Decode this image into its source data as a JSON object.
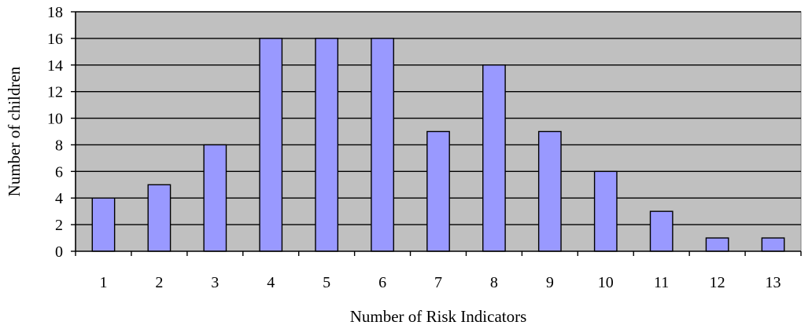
{
  "chart_data": {
    "type": "bar",
    "xlabel": "Number of Risk Indicators",
    "ylabel": "Number of children",
    "categories": [
      "1",
      "2",
      "3",
      "4",
      "5",
      "6",
      "7",
      "8",
      "9",
      "10",
      "11",
      "12",
      "13"
    ],
    "series": [
      {
        "values": [
          4,
          5,
          8,
          16,
          16,
          16,
          9,
          14,
          9,
          6,
          3,
          1,
          1
        ]
      }
    ],
    "ylim": [
      0,
      18
    ],
    "yticks": [
      0,
      2,
      4,
      6,
      8,
      10,
      12,
      14,
      16,
      18
    ],
    "grid": true,
    "legend": "none",
    "colors": {
      "plot_background": "#c0c0c0",
      "bar_fill": "#9999ff",
      "bar_stroke": "#000000",
      "gridline": "#000000"
    }
  }
}
